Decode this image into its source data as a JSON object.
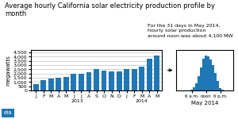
{
  "chart_data": [
    {
      "type": "bar",
      "title": "Average hourly California solar electricity production profile by month",
      "ylabel": "megawatts",
      "annotations": [
        "For the 31 days in May 2014,\nhourly solar production\naround noon was about 4,100 MW",
        "eia"
      ],
      "categories": [
        "J",
        "F",
        "M",
        "A",
        "M",
        "J",
        "J",
        "A",
        "S",
        "O",
        "N",
        "D",
        "J",
        "F",
        "M",
        "A",
        "M"
      ],
      "category_groups": [
        {
          "label": "2013",
          "count": 12
        },
        {
          "label": "2014",
          "count": 5
        }
      ],
      "values": [
        750,
        1200,
        1450,
        1550,
        1600,
        1950,
        1950,
        2150,
        2500,
        2350,
        2250,
        2250,
        2500,
        2500,
        2850,
        3800,
        4100
      ],
      "ylim": [
        0,
        4800
      ],
      "yticks": [
        0,
        500,
        {
          "value": 1000,
          "label": "1,000"
        },
        {
          "value": 1500,
          "label": "1,500"
        },
        {
          "value": 2000,
          "label": "2,000"
        },
        {
          "value": 2500,
          "label": "2,500"
        },
        {
          "value": 3000,
          "label": "3,000"
        },
        {
          "value": 3500,
          "label": "3,500"
        },
        {
          "value": 4000,
          "label": "4,000"
        },
        {
          "value": 4500,
          "label": "4,500"
        }
      ],
      "grid": true
    },
    {
      "type": "bar",
      "xlabel": "May 2014",
      "x": [
        0,
        1,
        2,
        3,
        4,
        5,
        6,
        7,
        8,
        9,
        10,
        11,
        12,
        13,
        14,
        15,
        16,
        17,
        18,
        19,
        20,
        21,
        22,
        23
      ],
      "values": [
        0,
        0,
        0,
        0,
        0,
        0,
        80,
        350,
        850,
        1700,
        2700,
        3800,
        4100,
        4000,
        3700,
        3000,
        2100,
        1100,
        300,
        50,
        0,
        0,
        0,
        0
      ],
      "xlim": [
        -0.5,
        23.5
      ],
      "xticks": [
        {
          "value": 6,
          "label": "6 a.m."
        },
        {
          "value": 12,
          "label": "noon"
        },
        {
          "value": 18,
          "label": "6 p.m."
        }
      ],
      "ylim": [
        0,
        4800
      ],
      "yticks": [],
      "tick_labels": "x",
      "grid": false
    }
  ]
}
